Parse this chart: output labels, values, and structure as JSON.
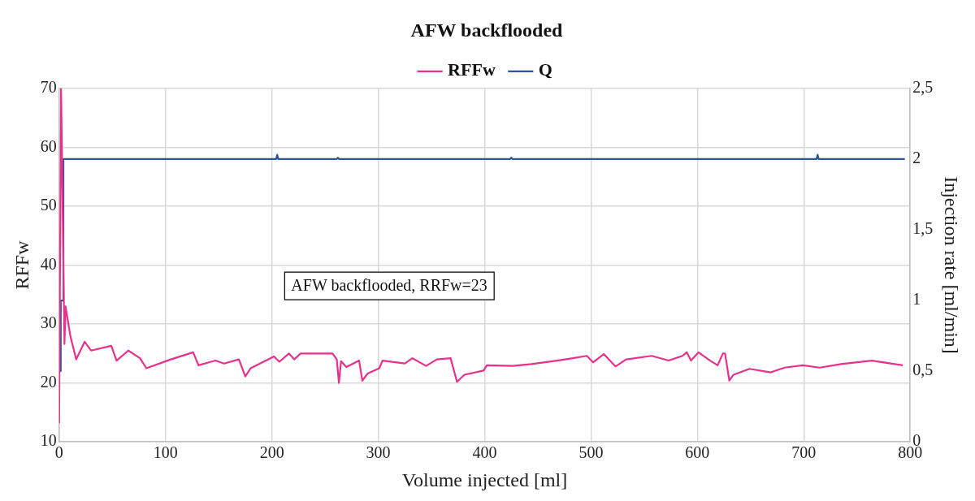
{
  "chart_data": {
    "type": "line",
    "title": "AFW backflooded",
    "xlabel": "Volume injected [ml]",
    "ylabel": "RFFw",
    "y2label": "Injection rate [ml/min]",
    "annotations": [
      "AFW backflooded, RRFw=23"
    ],
    "xlim": [
      0,
      800
    ],
    "xticks": [
      0,
      100,
      200,
      300,
      400,
      500,
      600,
      700,
      800
    ],
    "ylim": [
      10,
      70
    ],
    "yticks": [
      10,
      20,
      30,
      40,
      50,
      60,
      70
    ],
    "y2lim": [
      0,
      2.5
    ],
    "y2ticks": [
      0,
      {
        "value": 0.5,
        "label": "0,5"
      },
      1,
      {
        "value": 1.5,
        "label": "1,5"
      },
      2,
      {
        "value": 2.5,
        "label": "2,5"
      }
    ],
    "grid": true,
    "legend": "top",
    "marker": "none",
    "line_style": "solid",
    "series": [
      {
        "name": "RFFw",
        "color": "#e8318a",
        "x": [
          0,
          1.8,
          4.5,
          5,
          6,
          10.5,
          16,
          24,
          30,
          49,
          54,
          65,
          76,
          82,
          105,
          126,
          131,
          147,
          155,
          169,
          175,
          180,
          202,
          207,
          216,
          221,
          227,
          257,
          261,
          263,
          265,
          270,
          282,
          285,
          290,
          301,
          304,
          325,
          332,
          345,
          355,
          368,
          374,
          381,
          399,
          402,
          426,
          444,
          468,
          483,
          496,
          502,
          512,
          523,
          533,
          557,
          573,
          586,
          590,
          594,
          601,
          612,
          619,
          624,
          626,
          630,
          634,
          649,
          669,
          682,
          699,
          715,
          735,
          764,
          793
        ],
        "values": [
          13.2,
          70,
          33,
          26.6,
          33,
          28,
          24,
          27,
          25.5,
          26.3,
          23.8,
          25.5,
          24.2,
          22.5,
          24,
          25.2,
          23,
          23.8,
          23.3,
          24,
          21.1,
          22.5,
          24.5,
          23.6,
          25,
          24,
          25,
          25,
          24,
          20,
          23.7,
          22.7,
          23.8,
          20.4,
          21.6,
          22.5,
          23.8,
          23.3,
          24.2,
          22.9,
          24,
          24.2,
          20.2,
          21.4,
          22.1,
          23,
          22.9,
          23.2,
          23.8,
          24.2,
          24.6,
          23.5,
          24.9,
          22.8,
          24,
          24.6,
          23.8,
          24.6,
          25.2,
          23.8,
          25.2,
          23.8,
          23,
          25,
          25,
          20.4,
          21.4,
          22.4,
          21.8,
          22.6,
          23,
          22.6,
          23.2,
          23.8,
          23
        ]
      },
      {
        "name": "Q",
        "color": "#2f5597",
        "axis": "y2",
        "x": [
          0,
          1.5,
          1.5,
          4,
          4,
          204,
          205,
          206,
          261,
          262,
          263,
          424,
          425,
          426,
          712,
          713,
          714,
          795
        ],
        "values": [
          0.5,
          0.5,
          1,
          1,
          2,
          2,
          2.03,
          2,
          2,
          2.01,
          2,
          2,
          2.01,
          2,
          2,
          2.03,
          2,
          2
        ]
      }
    ]
  }
}
